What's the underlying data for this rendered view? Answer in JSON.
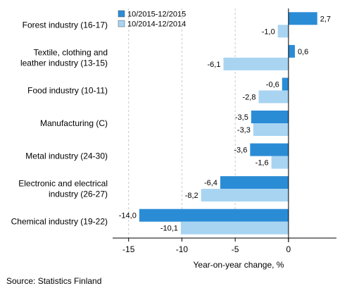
{
  "chart_data": {
    "type": "bar",
    "orientation": "horizontal",
    "categories": [
      [
        "Forest industry (16-17)"
      ],
      [
        "Textile, clothing and",
        "leather industry (13-15)"
      ],
      [
        "Food industry (10-11)"
      ],
      [
        "Manufacturing (C)"
      ],
      [
        "Metal industry (24-30)"
      ],
      [
        "Electronic and electrical",
        "industry (26-27)"
      ],
      [
        "Chemical industry (19-22)"
      ]
    ],
    "series": [
      {
        "name": "10/2015-12/2015",
        "color": "#2b8cd6",
        "values": [
          2.7,
          0.6,
          -0.6,
          -3.5,
          -3.6,
          -6.4,
          -14.0
        ],
        "labels": [
          "2,7",
          "0,6",
          "-0,6",
          "-3,5",
          "-3,6",
          "-6,4",
          "-14,0"
        ]
      },
      {
        "name": "10/2014-12/2014",
        "color": "#a8d4f2",
        "values": [
          -1.0,
          -6.1,
          -2.8,
          -3.3,
          -1.6,
          -8.2,
          -10.1
        ],
        "labels": [
          "-1,0",
          "-6,1",
          "-2,8",
          "-3,3",
          "-1,6",
          "-8,2",
          "-10,1"
        ]
      }
    ],
    "xlim": [
      -16.5,
      4.5
    ],
    "xticks": [
      -15,
      -10,
      -5,
      0
    ],
    "xtick_labels": [
      "-15",
      "-10",
      "-5",
      "0"
    ],
    "xlabel": "Year-on-year change, %",
    "grid": "vertical dashed",
    "legend": "top-left of plot"
  },
  "source": "Source: Statistics Finland"
}
